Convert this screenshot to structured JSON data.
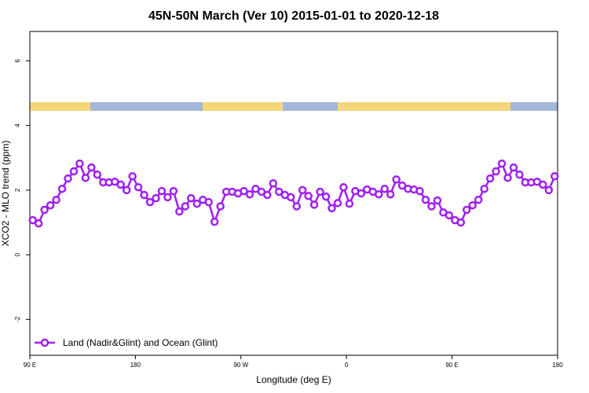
{
  "chart_data": {
    "type": "line",
    "title": "45N-50N March (Ver 10)   2015-01-01 to 2020-12-18",
    "x_label": "Longitude (deg E)",
    "y_label": "XCO2 - MLO trend (ppm)",
    "xlim": [
      90,
      540
    ],
    "xticks": [
      {
        "value": 90,
        "label": "90 E"
      },
      180,
      {
        "value": 270,
        "label": "90 W"
      },
      {
        "value": 360,
        "label": "0"
      },
      {
        "value": 450,
        "label": "90 E"
      },
      {
        "value": 540,
        "label": "180"
      }
    ],
    "ylim": [
      -3.11,
      6.91
    ],
    "yticks": [
      -2,
      0,
      2,
      4,
      6
    ],
    "legend": "bottom-left",
    "x": [
      92.5,
      97.5,
      102.5,
      107.5,
      112.5,
      117.5,
      122.5,
      127.5,
      132.5,
      137.5,
      142.5,
      147.5,
      152.5,
      157.5,
      162.5,
      167.5,
      172.5,
      177.5,
      182.5,
      187.5,
      192.5,
      197.5,
      202.5,
      207.5,
      212.5,
      217.5,
      222.5,
      227.5,
      232.5,
      237.5,
      242.5,
      247.5,
      252.5,
      257.5,
      262.5,
      267.5,
      272.5,
      277.5,
      282.5,
      287.5,
      292.5,
      297.5,
      302.5,
      307.5,
      312.5,
      317.5,
      322.5,
      327.5,
      332.5,
      337.5,
      342.5,
      347.5,
      352.5,
      357.5,
      362.5,
      367.5,
      372.5,
      377.5,
      382.5,
      387.5,
      392.5,
      397.5,
      402.5,
      407.5,
      412.5,
      417.5,
      422.5,
      427.5,
      432.5,
      437.5,
      442.5,
      447.5,
      452.5,
      457.5,
      462.5,
      467.5,
      472.5,
      477.5,
      482.5,
      487.5,
      492.5,
      497.5,
      502.5,
      507.5,
      512.5,
      517.5,
      522.5,
      527.5,
      532.5,
      537.5
    ],
    "series": [
      {
        "name": "Land (Nadir&Glint) and Ocean (Glint)",
        "color": "#a020f0",
        "values": [
          1.07,
          0.97,
          1.39,
          1.53,
          1.7,
          2.04,
          2.36,
          2.58,
          2.82,
          2.38,
          2.7,
          2.48,
          2.24,
          2.24,
          2.26,
          2.17,
          2.0,
          2.43,
          2.09,
          1.85,
          1.63,
          1.75,
          1.97,
          1.78,
          1.97,
          1.34,
          1.5,
          1.75,
          1.58,
          1.7,
          1.63,
          1.02,
          1.5,
          1.95,
          1.95,
          1.9,
          1.97,
          1.87,
          2.04,
          1.95,
          1.85,
          2.21,
          1.95,
          1.85,
          1.78,
          1.5,
          2.0,
          1.82,
          1.55,
          1.95,
          1.8,
          1.44,
          1.6,
          2.09,
          1.58,
          1.97,
          1.9,
          2.02,
          1.95,
          1.87,
          2.04,
          1.87,
          2.33,
          2.14,
          2.04,
          2.02,
          1.97,
          1.7,
          1.5,
          1.68,
          1.31,
          1.22,
          1.07,
          1.0,
          1.39,
          1.53,
          1.7,
          2.04,
          2.36,
          2.58,
          2.82,
          2.38,
          2.7,
          2.48,
          2.24,
          2.24,
          2.26,
          2.17,
          2.0,
          2.43
        ]
      }
    ]
  }
}
